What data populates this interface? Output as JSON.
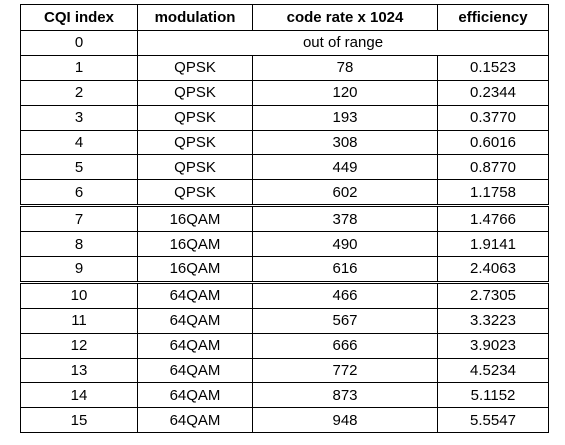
{
  "table": {
    "header": [
      "CQI index",
      "modulation",
      "code rate x 1024",
      "efficiency"
    ],
    "rows": [
      [
        "0",
        "out of range"
      ],
      [
        "1",
        "QPSK",
        "78",
        "0.1523"
      ],
      [
        "2",
        "QPSK",
        "120",
        "0.2344"
      ],
      [
        "3",
        "QPSK",
        "193",
        "0.3770"
      ],
      [
        "4",
        "QPSK",
        "308",
        "0.6016"
      ],
      [
        "5",
        "QPSK",
        "449",
        "0.8770"
      ],
      [
        "6",
        "QPSK",
        "602",
        "1.1758"
      ],
      [
        "7",
        "16QAM",
        "378",
        "1.4766"
      ],
      [
        "8",
        "16QAM",
        "490",
        "1.9141"
      ],
      [
        "9",
        "16QAM",
        "616",
        "2.4063"
      ],
      [
        "10",
        "64QAM",
        "466",
        "2.7305"
      ],
      [
        "11",
        "64QAM",
        "567",
        "3.3223"
      ],
      [
        "12",
        "64QAM",
        "666",
        "3.9023"
      ],
      [
        "13",
        "64QAM",
        "772",
        "4.5234"
      ],
      [
        "14",
        "64QAM",
        "873",
        "5.1152"
      ],
      [
        "15",
        "64QAM",
        "948",
        "5.5547"
      ]
    ]
  }
}
